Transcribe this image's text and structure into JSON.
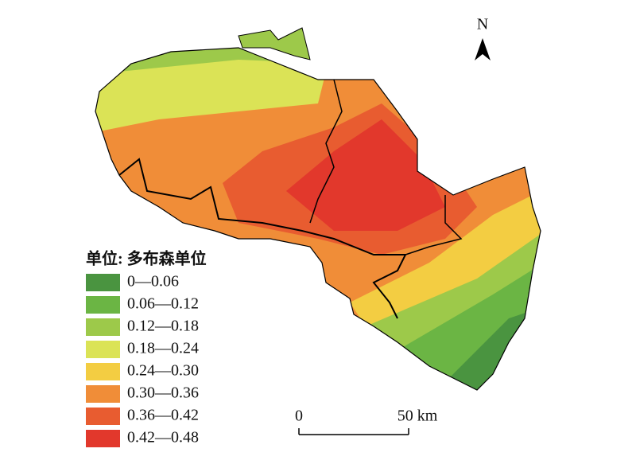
{
  "legend": {
    "title": "单位: 多布森单位",
    "items": [
      {
        "label": "0—0.06",
        "color": "#4a9440"
      },
      {
        "label": "0.06—0.12",
        "color": "#6bb544"
      },
      {
        "label": "0.12—0.18",
        "color": "#9dc94a"
      },
      {
        "label": "0.18—0.24",
        "color": "#dbe356"
      },
      {
        "label": "0.24—0.30",
        "color": "#f3cd42"
      },
      {
        "label": "0.30—0.36",
        "color": "#f08d38"
      },
      {
        "label": "0.36—0.42",
        "color": "#e85c30"
      },
      {
        "label": "0.42—0.48",
        "color": "#e2382c"
      }
    ]
  },
  "north_arrow": {
    "label": "N"
  },
  "scale_bar": {
    "start": "0",
    "end": "50 km"
  }
}
